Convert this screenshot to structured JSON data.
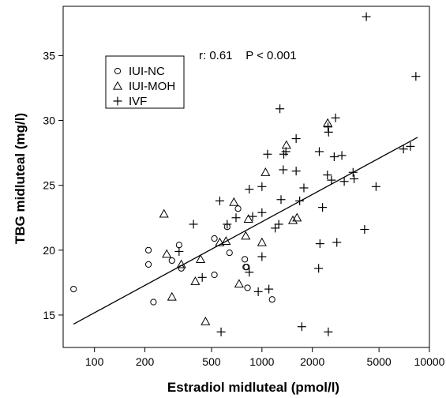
{
  "chart_data": {
    "type": "scatter",
    "title": "",
    "xlabel": "Estradiol midluteal (pmol/l)",
    "ylabel": "TBG midluteal (mg/l)",
    "x_scale": "log",
    "xlim": [
      65,
      10000
    ],
    "ylim": [
      12.5,
      38.8
    ],
    "x_ticks": [
      100,
      200,
      500,
      1000,
      2000,
      5000,
      10000
    ],
    "x_tick_labels": [
      "100",
      "200",
      "500",
      "1000",
      "2000",
      "5000",
      "10000"
    ],
    "y_ticks": [
      15,
      20,
      25,
      30,
      35
    ],
    "y_tick_labels": [
      "15",
      "20",
      "25",
      "30",
      "35"
    ],
    "grid": false,
    "legend_position": "top-left",
    "annotation": "r: 0.61    P < 0.001",
    "regression_line": {
      "x": [
        75,
        8500
      ],
      "y": [
        14.3,
        28.7
      ]
    },
    "series": [
      {
        "name": "IUI-NC",
        "marker": "circle",
        "points": [
          [
            75,
            17.0
          ],
          [
            210,
            20.0
          ],
          [
            210,
            18.9
          ],
          [
            225,
            16.0
          ],
          [
            290,
            19.2
          ],
          [
            320,
            20.4
          ],
          [
            330,
            18.6
          ],
          [
            520,
            20.9
          ],
          [
            520,
            18.1
          ],
          [
            620,
            21.8
          ],
          [
            640,
            19.8
          ],
          [
            720,
            23.2
          ],
          [
            790,
            19.3
          ],
          [
            800,
            18.7
          ],
          [
            810,
            18.7
          ],
          [
            820,
            17.1
          ],
          [
            1150,
            16.2
          ]
        ]
      },
      {
        "name": "IUI-MOH",
        "marker": "triangle",
        "points": [
          [
            260,
            22.8
          ],
          [
            270,
            19.7
          ],
          [
            290,
            16.4
          ],
          [
            330,
            18.9
          ],
          [
            400,
            17.6
          ],
          [
            430,
            19.3
          ],
          [
            460,
            14.5
          ],
          [
            560,
            20.6
          ],
          [
            610,
            20.7
          ],
          [
            680,
            23.7
          ],
          [
            730,
            17.4
          ],
          [
            800,
            21.1
          ],
          [
            830,
            22.4
          ],
          [
            1000,
            20.6
          ],
          [
            1050,
            26.0
          ],
          [
            1400,
            28.1
          ],
          [
            1530,
            22.3
          ],
          [
            1620,
            22.5
          ],
          [
            2470,
            29.8
          ]
        ]
      },
      {
        "name": "IVF",
        "marker": "plus",
        "points": [
          [
            320,
            19.9
          ],
          [
            390,
            22.0
          ],
          [
            440,
            17.9
          ],
          [
            560,
            23.8
          ],
          [
            570,
            13.7
          ],
          [
            620,
            22.0
          ],
          [
            700,
            22.5
          ],
          [
            840,
            24.7
          ],
          [
            840,
            18.3
          ],
          [
            880,
            22.6
          ],
          [
            950,
            16.8
          ],
          [
            1000,
            22.9
          ],
          [
            1000,
            24.9
          ],
          [
            1000,
            19.5
          ],
          [
            1080,
            27.4
          ],
          [
            1100,
            17.0
          ],
          [
            1200,
            21.7
          ],
          [
            1260,
            22.0
          ],
          [
            1280,
            30.9
          ],
          [
            1300,
            23.9
          ],
          [
            1340,
            26.2
          ],
          [
            1350,
            27.4
          ],
          [
            1390,
            27.6
          ],
          [
            1600,
            28.6
          ],
          [
            1600,
            26.1
          ],
          [
            1680,
            23.8
          ],
          [
            1730,
            14.1
          ],
          [
            1780,
            24.8
          ],
          [
            2180,
            18.6
          ],
          [
            2200,
            27.6
          ],
          [
            2220,
            20.5
          ],
          [
            2300,
            23.3
          ],
          [
            2460,
            25.8
          ],
          [
            2480,
            29.5
          ],
          [
            2490,
            13.7
          ],
          [
            2500,
            29.1
          ],
          [
            2600,
            25.4
          ],
          [
            2700,
            27.2
          ],
          [
            2750,
            30.2
          ],
          [
            2800,
            20.6
          ],
          [
            3000,
            27.3
          ],
          [
            3100,
            25.3
          ],
          [
            3500,
            26.0
          ],
          [
            3550,
            25.5
          ],
          [
            4100,
            21.6
          ],
          [
            4200,
            38.0
          ],
          [
            4800,
            24.9
          ],
          [
            7000,
            27.8
          ],
          [
            7700,
            28.0
          ],
          [
            8300,
            33.4
          ]
        ]
      }
    ]
  }
}
